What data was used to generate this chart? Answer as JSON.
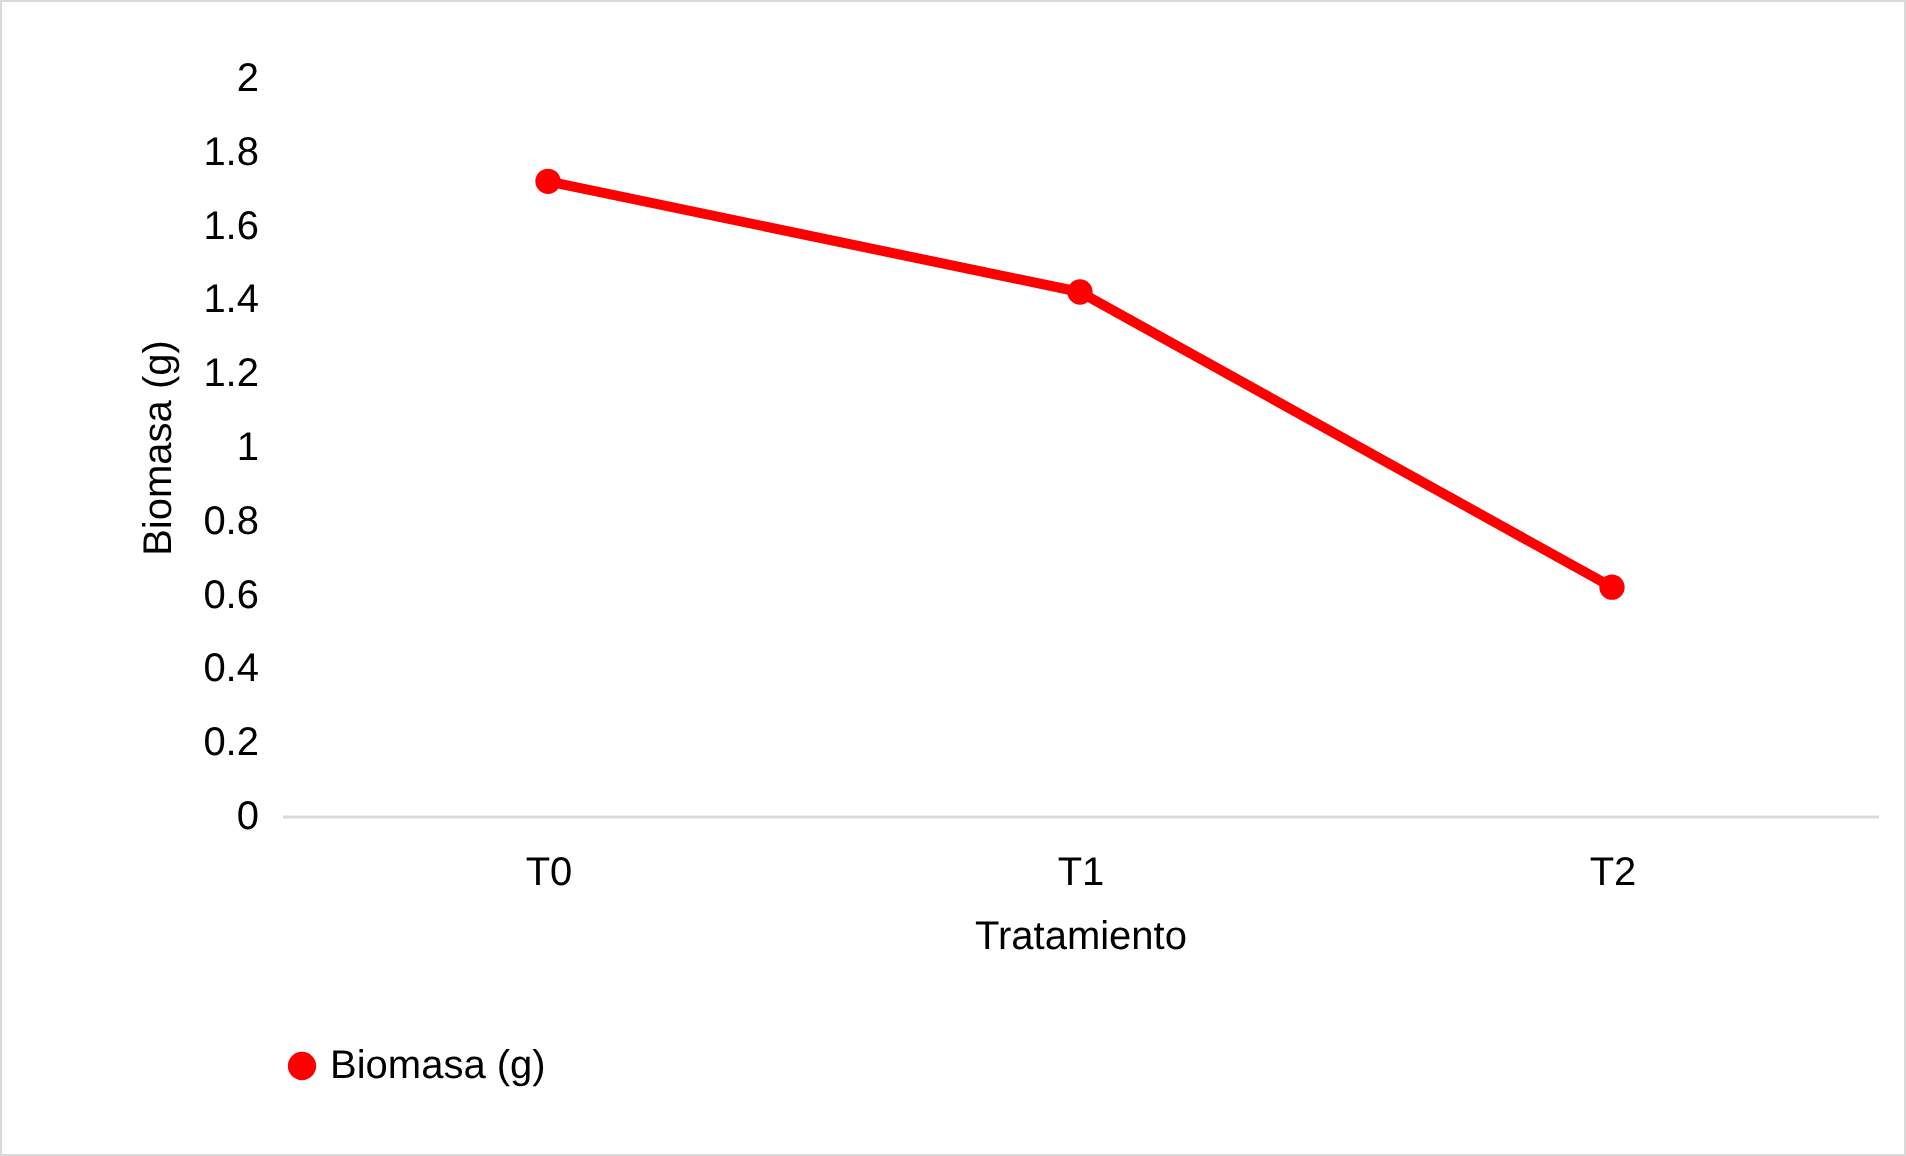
{
  "chart_data": {
    "type": "line",
    "xlabel": "Tratamiento",
    "ylabel": "Biomasa (g)",
    "categories": [
      "T0",
      "T1",
      "T2"
    ],
    "series": [
      {
        "name": "Biomasa (g)",
        "color": "#ff0000",
        "values": [
          1.72,
          1.42,
          0.62
        ]
      }
    ],
    "ylim": [
      0,
      2
    ],
    "yticks": [
      0,
      0.2,
      0.4,
      0.6,
      0.8,
      1,
      1.2,
      1.4,
      1.6,
      1.8,
      2
    ],
    "legend": "bottom",
    "marker": "circle"
  }
}
